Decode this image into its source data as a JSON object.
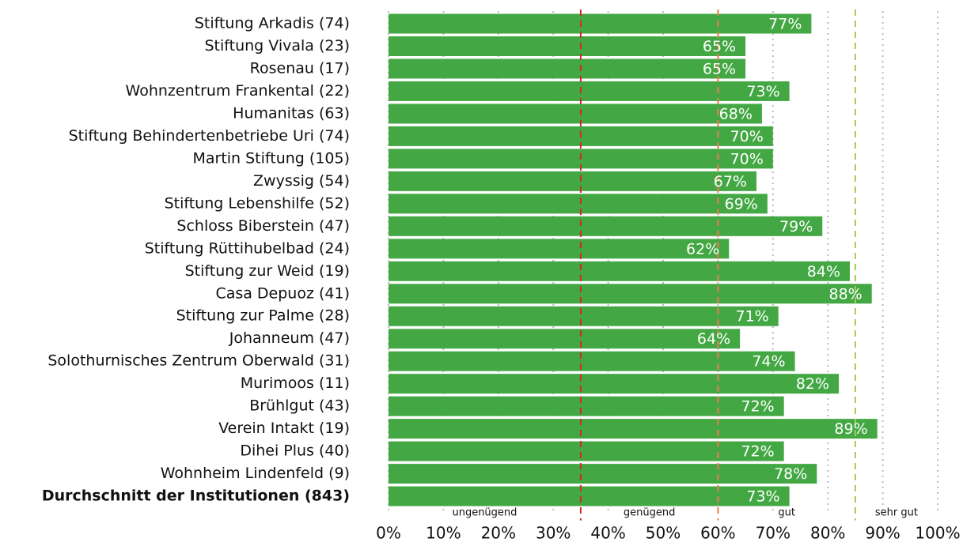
{
  "chart_data": {
    "type": "bar",
    "orientation": "horizontal",
    "color": "#43a843",
    "value_label_color": "#ffffff",
    "bold_index": 21,
    "categories": [
      "Stiftung Arkadis (74)",
      "Stiftung Vivala (23)",
      "Rosenau (17)",
      "Wohnzentrum Frankental (22)",
      "Humanitas (63)",
      "Stiftung Behindertenbetriebe Uri (74)",
      "Martin Stiftung (105)",
      "Zwyssig (54)",
      "Stiftung Lebenshilfe (52)",
      "Schloss Biberstein (47)",
      "Stiftung Rüttihubelbad (24)",
      "Stiftung zur Weid (19)",
      "Casa Depuoz (41)",
      "Stiftung zur Palme (28)",
      "Johanneum (47)",
      "Solothurnisches Zentrum Oberwald (31)",
      "Murimoos (11)",
      "Brühlgut (43)",
      "Verein Intakt (19)",
      "Dihei Plus (40)",
      "Wohnheim Lindenfeld (9)",
      "Durchschnitt der Institutionen (843)"
    ],
    "values": [
      77,
      65,
      65,
      73,
      68,
      70,
      70,
      67,
      69,
      79,
      62,
      84,
      88,
      71,
      64,
      74,
      82,
      72,
      89,
      72,
      78,
      73
    ],
    "value_labels": [
      "77%",
      "65%",
      "65%",
      "73%",
      "68%",
      "70%",
      "70%",
      "67%",
      "69%",
      "79%",
      "62%",
      "84%",
      "88%",
      "71%",
      "64%",
      "74%",
      "82%",
      "72%",
      "89%",
      "72%",
      "78%",
      "73%"
    ],
    "xlim": [
      0,
      100
    ],
    "xticks": [
      {
        "value": 0,
        "label": "0%"
      },
      {
        "value": 10,
        "label": "10%"
      },
      {
        "value": 20,
        "label": "20%"
      },
      {
        "value": 30,
        "label": "30%"
      },
      {
        "value": 40,
        "label": "40%"
      },
      {
        "value": 50,
        "label": "50%"
      },
      {
        "value": 60,
        "label": "60%"
      },
      {
        "value": 70,
        "label": "70%"
      },
      {
        "value": 80,
        "label": "80%"
      },
      {
        "value": 90,
        "label": "90%"
      },
      {
        "value": 100,
        "label": "100%"
      }
    ],
    "grid": true,
    "zones": [
      {
        "label": "ungenügend",
        "start": 0,
        "end": 35
      },
      {
        "label": "genügend",
        "start": 35,
        "end": 60,
        "color": "#d62728"
      },
      {
        "label": "gut",
        "start": 60,
        "end": 85,
        "color": "#ee7a4e"
      },
      {
        "label": "sehr gut",
        "start": 85,
        "end": 100,
        "color": "#a9c84e"
      }
    ]
  }
}
